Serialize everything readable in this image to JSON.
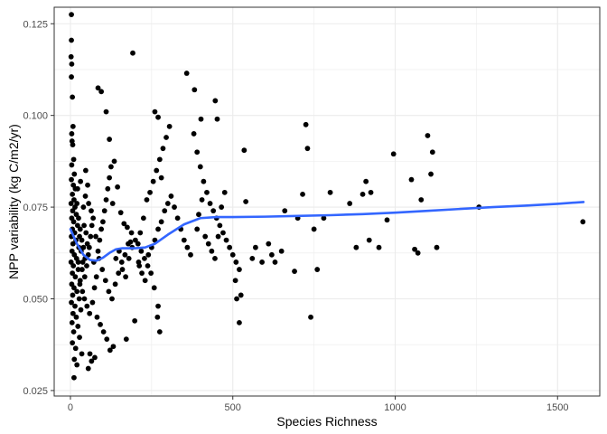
{
  "chart_data": {
    "type": "scatter",
    "title": "",
    "xlabel": "Species Richness",
    "ylabel": "NPP variability (kg C/m2/yr)",
    "xlim": [
      -50,
      1630
    ],
    "ylim": [
      0.0235,
      0.1295
    ],
    "x_ticks": [
      0,
      500,
      1000,
      1500
    ],
    "x_tick_labels": [
      "0",
      "500",
      "1000",
      "1500"
    ],
    "y_ticks": [
      0.025,
      0.05,
      0.075,
      0.1,
      0.125
    ],
    "y_tick_labels": [
      "0.025",
      "0.050",
      "0.075",
      "0.100",
      "0.125"
    ],
    "grid": true,
    "legend": "none",
    "colors": {
      "points": "#000000",
      "smooth": "#3366ff",
      "grid": "#ebebeb",
      "panel_border": "#333333"
    },
    "points": [
      [
        3,
        0.1275
      ],
      [
        3,
        0.1205
      ],
      [
        2,
        0.116
      ],
      [
        4,
        0.114
      ],
      [
        3,
        0.1105
      ],
      [
        6,
        0.105
      ],
      [
        8,
        0.097
      ],
      [
        4,
        0.095
      ],
      [
        5,
        0.093
      ],
      [
        7,
        0.092
      ],
      [
        10,
        0.088
      ],
      [
        4,
        0.0865
      ],
      [
        12,
        0.084
      ],
      [
        3,
        0.0825
      ],
      [
        9,
        0.081
      ],
      [
        15,
        0.08
      ],
      [
        6,
        0.0785
      ],
      [
        11,
        0.077
      ],
      [
        2,
        0.076
      ],
      [
        14,
        0.075
      ],
      [
        7,
        0.074
      ],
      [
        18,
        0.073
      ],
      [
        4,
        0.072
      ],
      [
        10,
        0.071
      ],
      [
        22,
        0.07
      ],
      [
        6,
        0.069
      ],
      [
        13,
        0.068
      ],
      [
        3,
        0.067
      ],
      [
        17,
        0.066
      ],
      [
        8,
        0.065
      ],
      [
        26,
        0.064
      ],
      [
        5,
        0.063
      ],
      [
        12,
        0.062
      ],
      [
        19,
        0.061
      ],
      [
        2,
        0.06
      ],
      [
        9,
        0.059
      ],
      [
        24,
        0.058
      ],
      [
        6,
        0.057
      ],
      [
        15,
        0.056
      ],
      [
        30,
        0.055
      ],
      [
        4,
        0.054
      ],
      [
        11,
        0.053
      ],
      [
        20,
        0.052
      ],
      [
        7,
        0.051
      ],
      [
        27,
        0.05
      ],
      [
        3,
        0.049
      ],
      [
        14,
        0.048
      ],
      [
        32,
        0.047
      ],
      [
        8,
        0.046
      ],
      [
        18,
        0.045
      ],
      [
        5,
        0.0435
      ],
      [
        23,
        0.0425
      ],
      [
        10,
        0.041
      ],
      [
        28,
        0.0395
      ],
      [
        6,
        0.038
      ],
      [
        16,
        0.0365
      ],
      [
        35,
        0.035
      ],
      [
        12,
        0.0335
      ],
      [
        20,
        0.032
      ],
      [
        11,
        0.0285
      ],
      [
        20,
        0.076
      ],
      [
        25,
        0.072
      ],
      [
        30,
        0.069
      ],
      [
        35,
        0.066
      ],
      [
        40,
        0.064
      ],
      [
        45,
        0.061
      ],
      [
        50,
        0.059
      ],
      [
        28,
        0.067
      ],
      [
        33,
        0.063
      ],
      [
        38,
        0.06
      ],
      [
        42,
        0.07
      ],
      [
        48,
        0.068
      ],
      [
        52,
        0.065
      ],
      [
        55,
        0.062
      ],
      [
        24,
        0.06
      ],
      [
        36,
        0.058
      ],
      [
        44,
        0.056
      ],
      [
        58,
        0.064
      ],
      [
        62,
        0.067
      ],
      [
        66,
        0.07
      ],
      [
        70,
        0.072
      ],
      [
        40,
        0.075
      ],
      [
        46,
        0.078
      ],
      [
        56,
        0.076
      ],
      [
        64,
        0.074
      ],
      [
        22,
        0.08
      ],
      [
        31,
        0.082
      ],
      [
        47,
        0.085
      ],
      [
        53,
        0.081
      ],
      [
        29,
        0.054
      ],
      [
        37,
        0.052
      ],
      [
        43,
        0.05
      ],
      [
        51,
        0.048
      ],
      [
        59,
        0.046
      ],
      [
        68,
        0.049
      ],
      [
        74,
        0.053
      ],
      [
        80,
        0.056
      ],
      [
        72,
        0.06
      ],
      [
        85,
        0.063
      ],
      [
        90,
        0.066
      ],
      [
        95,
        0.069
      ],
      [
        100,
        0.071
      ],
      [
        105,
        0.074
      ],
      [
        110,
        0.077
      ],
      [
        115,
        0.08
      ],
      [
        120,
        0.083
      ],
      [
        125,
        0.086
      ],
      [
        130,
        0.076
      ],
      [
        78,
        0.067
      ],
      [
        88,
        0.061
      ],
      [
        98,
        0.058
      ],
      [
        108,
        0.055
      ],
      [
        118,
        0.052
      ],
      [
        128,
        0.05
      ],
      [
        138,
        0.054
      ],
      [
        148,
        0.057
      ],
      [
        158,
        0.06
      ],
      [
        168,
        0.062
      ],
      [
        178,
        0.065
      ],
      [
        188,
        0.068
      ],
      [
        82,
        0.045
      ],
      [
        92,
        0.043
      ],
      [
        102,
        0.041
      ],
      [
        112,
        0.039
      ],
      [
        122,
        0.036
      ],
      [
        132,
        0.037
      ],
      [
        65,
        0.033
      ],
      [
        75,
        0.034
      ],
      [
        55,
        0.031
      ],
      [
        60,
        0.035
      ],
      [
        85,
        0.1075
      ],
      [
        95,
        0.1065
      ],
      [
        110,
        0.101
      ],
      [
        120,
        0.0935
      ],
      [
        135,
        0.0875
      ],
      [
        145,
        0.0805
      ],
      [
        155,
        0.0735
      ],
      [
        165,
        0.0705
      ],
      [
        175,
        0.0695
      ],
      [
        185,
        0.0655
      ],
      [
        192,
        0.117
      ],
      [
        172,
        0.039
      ],
      [
        198,
        0.044
      ],
      [
        140,
        0.061
      ],
      [
        150,
        0.063
      ],
      [
        160,
        0.058
      ],
      [
        170,
        0.056
      ],
      [
        180,
        0.061
      ],
      [
        190,
        0.064
      ],
      [
        200,
        0.066
      ],
      [
        210,
        0.06
      ],
      [
        220,
        0.057
      ],
      [
        230,
        0.055
      ],
      [
        240,
        0.062
      ],
      [
        250,
        0.064
      ],
      [
        260,
        0.066
      ],
      [
        270,
        0.069
      ],
      [
        280,
        0.071
      ],
      [
        290,
        0.074
      ],
      [
        300,
        0.076
      ],
      [
        215,
        0.068
      ],
      [
        225,
        0.072
      ],
      [
        235,
        0.077
      ],
      [
        245,
        0.079
      ],
      [
        255,
        0.082
      ],
      [
        265,
        0.085
      ],
      [
        275,
        0.088
      ],
      [
        285,
        0.091
      ],
      [
        295,
        0.094
      ],
      [
        305,
        0.097
      ],
      [
        260,
        0.101
      ],
      [
        270,
        0.0995
      ],
      [
        280,
        0.083
      ],
      [
        310,
        0.078
      ],
      [
        320,
        0.075
      ],
      [
        330,
        0.072
      ],
      [
        340,
        0.069
      ],
      [
        350,
        0.066
      ],
      [
        360,
        0.064
      ],
      [
        370,
        0.062
      ],
      [
        270,
        0.048
      ],
      [
        275,
        0.041
      ],
      [
        268,
        0.045
      ],
      [
        258,
        0.053
      ],
      [
        248,
        0.057
      ],
      [
        238,
        0.059
      ],
      [
        228,
        0.061
      ],
      [
        218,
        0.063
      ],
      [
        208,
        0.065
      ],
      [
        212,
        0.059
      ],
      [
        358,
        0.1115
      ],
      [
        382,
        0.107
      ],
      [
        402,
        0.099
      ],
      [
        446,
        0.104
      ],
      [
        452,
        0.099
      ],
      [
        380,
        0.095
      ],
      [
        390,
        0.09
      ],
      [
        400,
        0.086
      ],
      [
        410,
        0.082
      ],
      [
        420,
        0.079
      ],
      [
        430,
        0.076
      ],
      [
        440,
        0.074
      ],
      [
        450,
        0.072
      ],
      [
        460,
        0.07
      ],
      [
        470,
        0.068
      ],
      [
        480,
        0.066
      ],
      [
        490,
        0.064
      ],
      [
        500,
        0.062
      ],
      [
        510,
        0.06
      ],
      [
        520,
        0.058
      ],
      [
        390,
        0.069
      ],
      [
        395,
        0.073
      ],
      [
        405,
        0.077
      ],
      [
        415,
        0.067
      ],
      [
        425,
        0.065
      ],
      [
        435,
        0.063
      ],
      [
        445,
        0.061
      ],
      [
        455,
        0.067
      ],
      [
        465,
        0.075
      ],
      [
        475,
        0.079
      ],
      [
        508,
        0.055
      ],
      [
        512,
        0.05
      ],
      [
        525,
        0.051
      ],
      [
        520,
        0.0435
      ],
      [
        535,
        0.0905
      ],
      [
        540,
        0.0765
      ],
      [
        560,
        0.061
      ],
      [
        570,
        0.064
      ],
      [
        590,
        0.06
      ],
      [
        610,
        0.065
      ],
      [
        620,
        0.062
      ],
      [
        630,
        0.06
      ],
      [
        650,
        0.063
      ],
      [
        660,
        0.074
      ],
      [
        690,
        0.0575
      ],
      [
        700,
        0.072
      ],
      [
        715,
        0.0785
      ],
      [
        725,
        0.0975
      ],
      [
        730,
        0.091
      ],
      [
        740,
        0.045
      ],
      [
        750,
        0.069
      ],
      [
        760,
        0.058
      ],
      [
        780,
        0.072
      ],
      [
        800,
        0.079
      ],
      [
        860,
        0.076
      ],
      [
        880,
        0.064
      ],
      [
        900,
        0.0785
      ],
      [
        910,
        0.082
      ],
      [
        920,
        0.066
      ],
      [
        925,
        0.079
      ],
      [
        950,
        0.064
      ],
      [
        975,
        0.0715
      ],
      [
        995,
        0.0895
      ],
      [
        1050,
        0.0825
      ],
      [
        1060,
        0.0635
      ],
      [
        1070,
        0.0625
      ],
      [
        1080,
        0.077
      ],
      [
        1100,
        0.0945
      ],
      [
        1110,
        0.084
      ],
      [
        1115,
        0.09
      ],
      [
        1128,
        0.064
      ],
      [
        1258,
        0.075
      ],
      [
        1578,
        0.071
      ]
    ],
    "smooth": {
      "x": [
        0,
        20,
        40,
        60,
        80,
        100,
        120,
        140,
        160,
        180,
        200,
        230,
        260,
        300,
        350,
        400,
        450,
        500,
        600,
        700,
        800,
        900,
        1000,
        1100,
        1200,
        1300,
        1400,
        1500,
        1580
      ],
      "y": [
        0.069,
        0.065,
        0.062,
        0.0606,
        0.0604,
        0.0612,
        0.0625,
        0.0635,
        0.0638,
        0.0638,
        0.0638,
        0.064,
        0.065,
        0.0675,
        0.0703,
        0.072,
        0.0723,
        0.0723,
        0.0724,
        0.0726,
        0.0728,
        0.0731,
        0.0735,
        0.074,
        0.0745,
        0.075,
        0.0754,
        0.0759,
        0.0764
      ]
    }
  }
}
